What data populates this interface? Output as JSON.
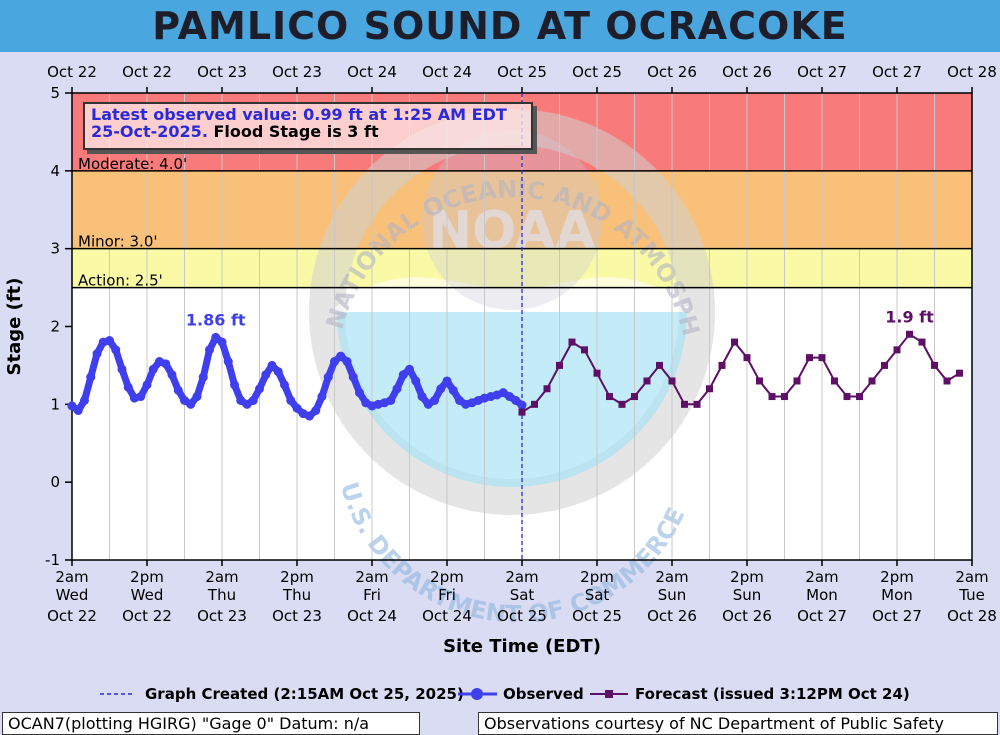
{
  "title": "PAMLICO SOUND AT OCRACOKE",
  "info": {
    "line1": "Latest observed value: 0.99 ft at 1:25 AM EDT",
    "line2_blue": "25-Oct-2025.",
    "line2_black": " Flood Stage is 3 ft"
  },
  "footer": {
    "left": "OCAN7(plotting HGIRG) \"Gage 0\" Datum: n/a",
    "right": "Observations courtesy of NC Department of Public Safety"
  },
  "legend": {
    "created": "Graph Created (2:15AM Oct 25, 2025)",
    "observed": "Observed",
    "forecast": "Forecast (issued 3:12PM Oct 24)"
  },
  "watermark": {
    "top_text": "NATIONAL OCEANIC AND ATMOSPHERIC ADMINISTRATION",
    "bottom_text": "U.S. DEPARTMENT OF COMMERCE",
    "center_text": "NOAA"
  },
  "colors": {
    "major": "#f87a7a",
    "moderate": "#f9c07a",
    "minor": "#fafaa6",
    "observed": "#3f3fee",
    "forecast": "#5e0f66",
    "now_line": "#2a2ad8"
  },
  "chart_data": {
    "type": "line",
    "xlabel": "Site Time (EDT)",
    "ylabel": "Stage (ft)",
    "ylim": [
      -1,
      5
    ],
    "yticks": [
      -1,
      0,
      1,
      2,
      3,
      4,
      5
    ],
    "x_hours_range": [
      0,
      144
    ],
    "top_ticks": [
      "Oct 22",
      "Oct 22",
      "Oct 23",
      "Oct 23",
      "Oct 24",
      "Oct 24",
      "Oct 25",
      "Oct 25",
      "Oct 26",
      "Oct 26",
      "Oct 27",
      "Oct 27",
      "Oct 28"
    ],
    "bottom_ticks": [
      {
        "time": "2am",
        "day": "Wed",
        "date": "Oct 22"
      },
      {
        "time": "2pm",
        "day": "Wed",
        "date": "Oct 22"
      },
      {
        "time": "2am",
        "day": "Thu",
        "date": "Oct 23"
      },
      {
        "time": "2pm",
        "day": "Thu",
        "date": "Oct 23"
      },
      {
        "time": "2am",
        "day": "Fri",
        "date": "Oct 24"
      },
      {
        "time": "2pm",
        "day": "Fri",
        "date": "Oct 24"
      },
      {
        "time": "2am",
        "day": "Sat",
        "date": "Oct 25"
      },
      {
        "time": "2pm",
        "day": "Sat",
        "date": "Oct 25"
      },
      {
        "time": "2am",
        "day": "Sun",
        "date": "Oct 26"
      },
      {
        "time": "2pm",
        "day": "Sun",
        "date": "Oct 26"
      },
      {
        "time": "2am",
        "day": "Mon",
        "date": "Oct 27"
      },
      {
        "time": "2pm",
        "day": "Mon",
        "date": "Oct 27"
      },
      {
        "time": "2am",
        "day": "Tue",
        "date": "Oct 28"
      }
    ],
    "thresholds": [
      {
        "name": "Moderate",
        "label": "Moderate: 4.0'",
        "value": 4.0
      },
      {
        "name": "Minor",
        "label": "Minor: 3.0'",
        "value": 3.0
      },
      {
        "name": "Action",
        "label": "Action: 2.5'",
        "value": 2.5
      }
    ],
    "now_hours": 72,
    "observed": {
      "name": "Observed",
      "x": [
        0,
        1,
        2,
        3,
        4,
        5,
        6,
        7,
        8,
        9,
        10,
        11,
        12,
        13,
        14,
        15,
        16,
        17,
        18,
        19,
        20,
        21,
        22,
        23,
        24,
        25,
        26,
        27,
        28,
        29,
        30,
        31,
        32,
        33,
        34,
        35,
        36,
        37,
        38,
        39,
        40,
        41,
        42,
        43,
        44,
        45,
        46,
        47,
        48,
        49,
        50,
        51,
        52,
        53,
        54,
        55,
        56,
        57,
        58,
        59,
        60,
        61,
        62,
        63,
        64,
        65,
        66,
        67,
        68,
        69,
        70,
        71,
        72
      ],
      "y": [
        0.98,
        0.92,
        1.05,
        1.35,
        1.65,
        1.8,
        1.82,
        1.7,
        1.45,
        1.22,
        1.08,
        1.1,
        1.25,
        1.45,
        1.55,
        1.52,
        1.38,
        1.18,
        1.05,
        1.0,
        1.1,
        1.35,
        1.7,
        1.86,
        1.8,
        1.55,
        1.25,
        1.05,
        1.0,
        1.05,
        1.2,
        1.38,
        1.5,
        1.42,
        1.25,
        1.05,
        0.95,
        0.88,
        0.85,
        0.92,
        1.1,
        1.35,
        1.55,
        1.62,
        1.55,
        1.35,
        1.15,
        1.02,
        0.98,
        1.0,
        1.02,
        1.05,
        1.2,
        1.38,
        1.45,
        1.3,
        1.1,
        1.0,
        1.05,
        1.2,
        1.3,
        1.18,
        1.05,
        1.0,
        1.02,
        1.05,
        1.08,
        1.1,
        1.12,
        1.15,
        1.1,
        1.05,
        0.99
      ]
    },
    "forecast": {
      "name": "Forecast",
      "x": [
        72,
        74,
        76,
        78,
        80,
        82,
        84,
        86,
        88,
        90,
        92,
        94,
        96,
        98,
        100,
        102,
        104,
        106,
        108,
        110,
        112,
        114,
        116,
        118,
        120,
        122,
        124,
        126,
        128,
        130,
        132,
        134,
        136,
        138,
        140,
        142
      ],
      "y": [
        0.9,
        1.0,
        1.2,
        1.5,
        1.8,
        1.7,
        1.4,
        1.1,
        1.0,
        1.1,
        1.3,
        1.5,
        1.3,
        1.0,
        1.0,
        1.2,
        1.5,
        1.8,
        1.6,
        1.3,
        1.1,
        1.1,
        1.3,
        1.6,
        1.6,
        1.3,
        1.1,
        1.1,
        1.3,
        1.5,
        1.7,
        1.9,
        1.8,
        1.5,
        1.3,
        1.4
      ]
    },
    "annotations": [
      {
        "text": "1.86 ft",
        "x": 23,
        "y": 1.86,
        "series": "observed"
      },
      {
        "text": "1.9 ft",
        "x": 134,
        "y": 1.9,
        "series": "forecast"
      }
    ]
  }
}
